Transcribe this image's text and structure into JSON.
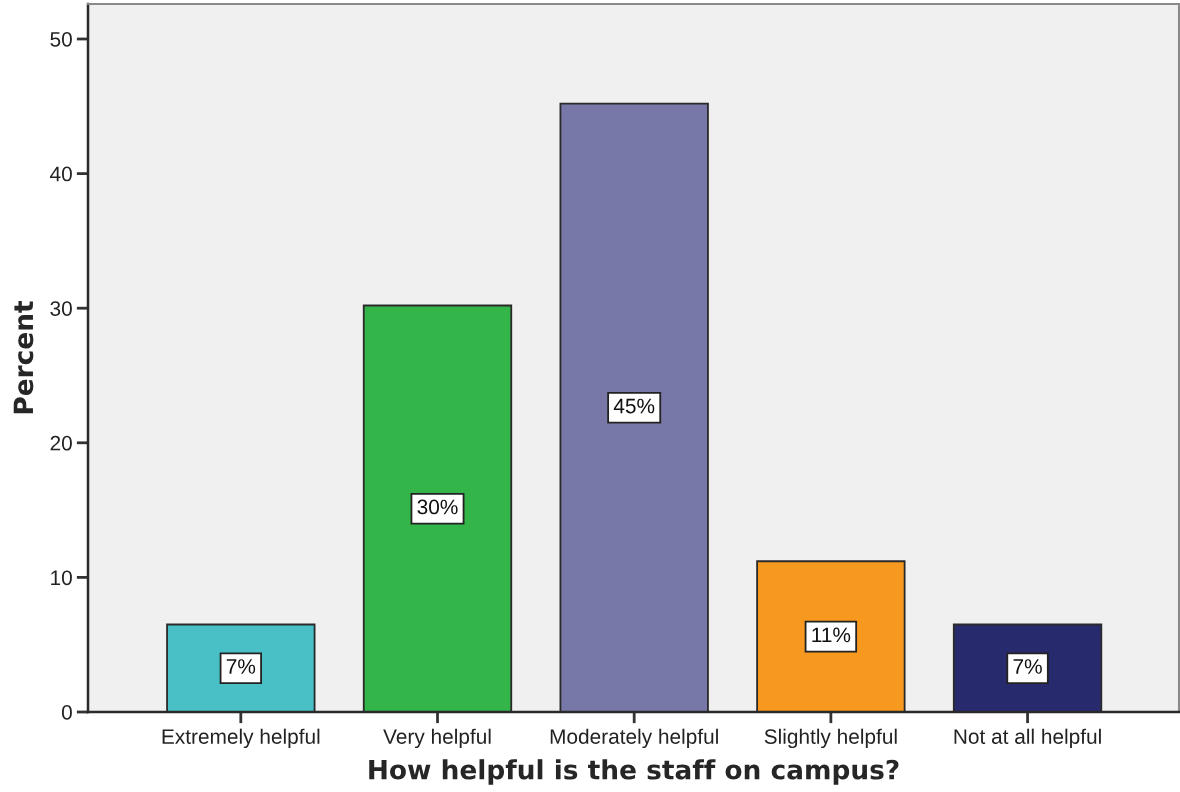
{
  "chart_data": {
    "type": "bar",
    "xlabel": "How helpful is the staff on campus?",
    "ylabel": "Percent",
    "categories": [
      "Extremely helpful",
      "Very helpful",
      "Moderately helpful",
      "Slightly helpful",
      "Not at all helpful"
    ],
    "values": [
      6.5,
      30.2,
      45.2,
      11.2,
      6.5
    ],
    "colors": [
      "#48c0c6",
      "#33b54a",
      "#7878a8",
      "#f7981f",
      "#282a6e"
    ],
    "value_labels": [
      "7%",
      "30%",
      "45%",
      "11%",
      "7%"
    ],
    "ylim": [
      0,
      52.6
    ],
    "yticks": [
      0,
      10,
      20,
      30,
      40,
      50
    ]
  }
}
